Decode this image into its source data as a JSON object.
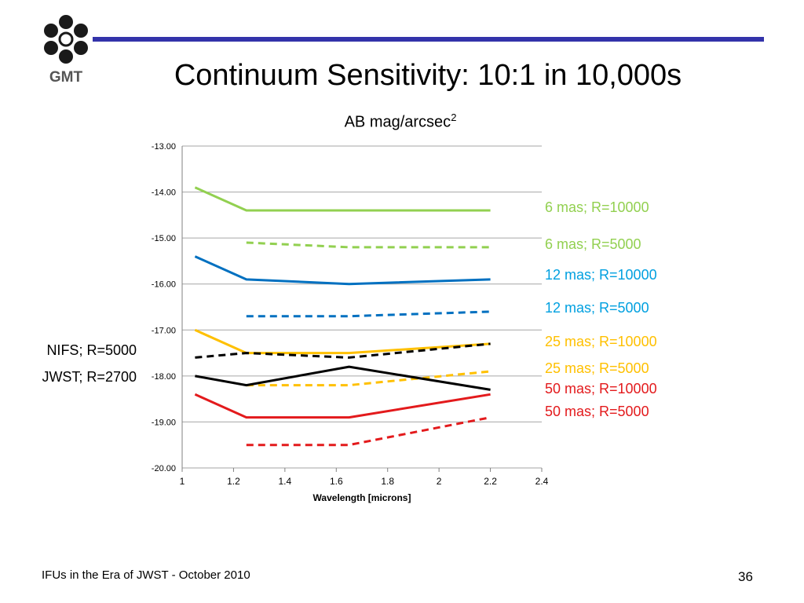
{
  "header": {
    "logo_text": "GMT",
    "title": "Continuum Sensitivity: 10:1 in 10,000s",
    "subtitle_main": "AB mag/arcsec",
    "subtitle_sup": "2"
  },
  "colors": {
    "rule": "#3333aa",
    "green": "#92d050",
    "blue": "#0070c0",
    "yellow": "#ffc000",
    "black": "#000000",
    "red": "#e31a1c",
    "grid": "#a6a6a6"
  },
  "chart_data": {
    "type": "line",
    "xlabel": "Wavelength [microns]",
    "ylabel": "",
    "xlim": [
      1,
      2.4
    ],
    "ylim": [
      -20,
      -13
    ],
    "x_ticks": [
      "1",
      "1.2",
      "1.4",
      "1.6",
      "1.8",
      "2",
      "2.2",
      "2.4"
    ],
    "y_ticks": [
      "-13.00",
      "-14.00",
      "-15.00",
      "-16.00",
      "-17.00",
      "-18.00",
      "-19.00",
      "-20.00"
    ],
    "grid": true,
    "legend": "right",
    "series": [
      {
        "name": "6 mas; R=10000",
        "color": "#92d050",
        "dashed": false,
        "x": [
          1.05,
          1.25,
          1.65,
          2.2
        ],
        "y": [
          -13.9,
          -14.4,
          -14.4,
          -14.4
        ]
      },
      {
        "name": "6 mas; R=5000",
        "color": "#92d050",
        "dashed": true,
        "x": [
          1.25,
          1.65,
          2.2
        ],
        "y": [
          -15.1,
          -15.2,
          -15.2
        ]
      },
      {
        "name": "12 mas; R=10000",
        "color": "#0070c0",
        "dashed": false,
        "x": [
          1.05,
          1.25,
          1.65,
          2.2
        ],
        "y": [
          -15.4,
          -15.9,
          -16.0,
          -15.9
        ]
      },
      {
        "name": "12 mas; R=5000",
        "color": "#0070c0",
        "dashed": true,
        "x": [
          1.25,
          1.65,
          2.2
        ],
        "y": [
          -16.7,
          -16.7,
          -16.6
        ]
      },
      {
        "name": "25 mas; R=10000",
        "color": "#ffc000",
        "dashed": false,
        "x": [
          1.05,
          1.25,
          1.65,
          2.2
        ],
        "y": [
          -17.0,
          -17.5,
          -17.5,
          -17.3
        ]
      },
      {
        "name": "25 mas; R=5000",
        "color": "#ffc000",
        "dashed": true,
        "x": [
          1.25,
          1.65,
          2.2
        ],
        "y": [
          -18.2,
          -18.2,
          -17.9
        ]
      },
      {
        "name": "50 mas; R=10000",
        "color": "#e31a1c",
        "dashed": false,
        "x": [
          1.05,
          1.25,
          1.65,
          2.2
        ],
        "y": [
          -18.4,
          -18.9,
          -18.9,
          -18.4
        ]
      },
      {
        "name": "50 mas; R=5000",
        "color": "#e31a1c",
        "dashed": true,
        "x": [
          1.25,
          1.65,
          2.2
        ],
        "y": [
          -19.5,
          -19.5,
          -18.9
        ]
      },
      {
        "name": "NIFS; R=5000",
        "color": "#000000",
        "dashed": true,
        "x": [
          1.05,
          1.25,
          1.65,
          2.2
        ],
        "y": [
          -17.6,
          -17.5,
          -17.6,
          -17.3
        ]
      },
      {
        "name": "JWST; R=2700",
        "color": "#000000",
        "dashed": false,
        "x": [
          1.05,
          1.25,
          1.65,
          2.2
        ],
        "y": [
          -18.0,
          -18.2,
          -17.8,
          -18.3
        ]
      }
    ],
    "legend_right": [
      {
        "text": "6 mas; R=10000",
        "color": "#92d050"
      },
      {
        "text": "6 mas; R=5000",
        "color": "#92d050"
      },
      {
        "text": "12 mas; R=10000",
        "color": "#00a0e0"
      },
      {
        "text": "12 mas; R=5000",
        "color": "#00a0e0"
      },
      {
        "text": "25 mas; R=10000",
        "color": "#ffc000"
      },
      {
        "text": "25 mas; R=5000",
        "color": "#ffc000"
      },
      {
        "text": "50 mas; R=10000",
        "color": "#e31a1c"
      },
      {
        "text": "50 mas; R=5000",
        "color": "#e31a1c"
      }
    ],
    "legend_left": [
      {
        "text": "NIFS; R=5000",
        "color": "#000000"
      },
      {
        "text": "JWST; R=2700",
        "color": "#000000"
      }
    ]
  },
  "footer": {
    "left_text": "IFUs in the Era of JWST - October 2010",
    "page_number": "36"
  }
}
